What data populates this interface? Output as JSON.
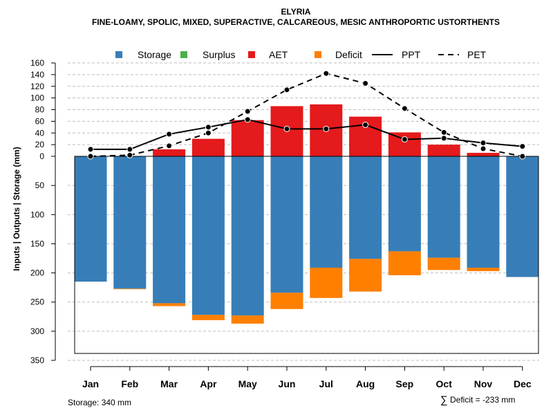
{
  "chart_data": {
    "type": "bar",
    "title": "ELYRIA",
    "subtitle": "FINE-LOAMY, SPOLIC, MIXED, SUPERACTIVE, CALCAREOUS, MESIC ANTHROPORTIC USTORTHENTS",
    "ylabel": "Inputs | Outputs | Storage    (mm)",
    "categories": [
      "Jan",
      "Feb",
      "Mar",
      "Apr",
      "May",
      "Jun",
      "Jul",
      "Aug",
      "Sep",
      "Oct",
      "Nov",
      "Dec"
    ],
    "ylim": [
      -350,
      160
    ],
    "yticks": [
      160,
      140,
      120,
      100,
      80,
      60,
      40,
      20,
      0,
      -50,
      -100,
      -150,
      -200,
      -250,
      -300,
      -350
    ],
    "ytick_labels": [
      "160",
      "140",
      "120",
      "100",
      "80",
      "60",
      "40",
      "20",
      "0",
      "50",
      "100",
      "150",
      "200",
      "250",
      "300",
      "350"
    ],
    "series": [
      {
        "name": "Storage",
        "color": "#377EB8",
        "values": [
          215,
          227,
          252,
          272,
          273,
          234,
          191,
          176,
          163,
          174,
          191,
          207
        ]
      },
      {
        "name": "Surplus",
        "color": "#4DAF4A",
        "values": [
          0,
          0,
          0,
          0,
          0,
          0,
          0,
          0,
          0,
          0,
          0,
          0
        ]
      },
      {
        "name": "AET",
        "color": "#E41A1C",
        "values": [
          0,
          0,
          12,
          30,
          62,
          86,
          89,
          68,
          41,
          20,
          6,
          0
        ]
      },
      {
        "name": "Deficit",
        "color": "#FF7F00",
        "values": [
          0,
          1,
          5,
          9,
          14,
          28,
          52,
          56,
          41,
          21,
          6,
          0
        ]
      },
      {
        "name": "PPT",
        "color": "#000000",
        "values": [
          12,
          12,
          38,
          50,
          63,
          47,
          47,
          54,
          29,
          31,
          23,
          17
        ]
      },
      {
        "name": "PET",
        "color": "#000000",
        "values": [
          0,
          2,
          18,
          40,
          77,
          114,
          142,
          125,
          82,
          41,
          13,
          0
        ]
      }
    ],
    "legend": {
      "position": "top",
      "items": [
        {
          "label": "Storage",
          "kind": "box",
          "color": "#377EB8"
        },
        {
          "label": "Surplus",
          "kind": "box",
          "color": "#4DAF4A"
        },
        {
          "label": "AET",
          "kind": "box",
          "color": "#E41A1C"
        },
        {
          "label": "Deficit",
          "kind": "box",
          "color": "#FF7F00"
        },
        {
          "label": "PPT",
          "kind": "solid-line",
          "color": "#000000"
        },
        {
          "label": "PET",
          "kind": "dashed-line",
          "color": "#000000"
        }
      ]
    },
    "storage_note": "Storage: 340 mm",
    "deficit_symbol": "∑",
    "deficit_note": "Deficit = -233 mm",
    "grid": true
  }
}
